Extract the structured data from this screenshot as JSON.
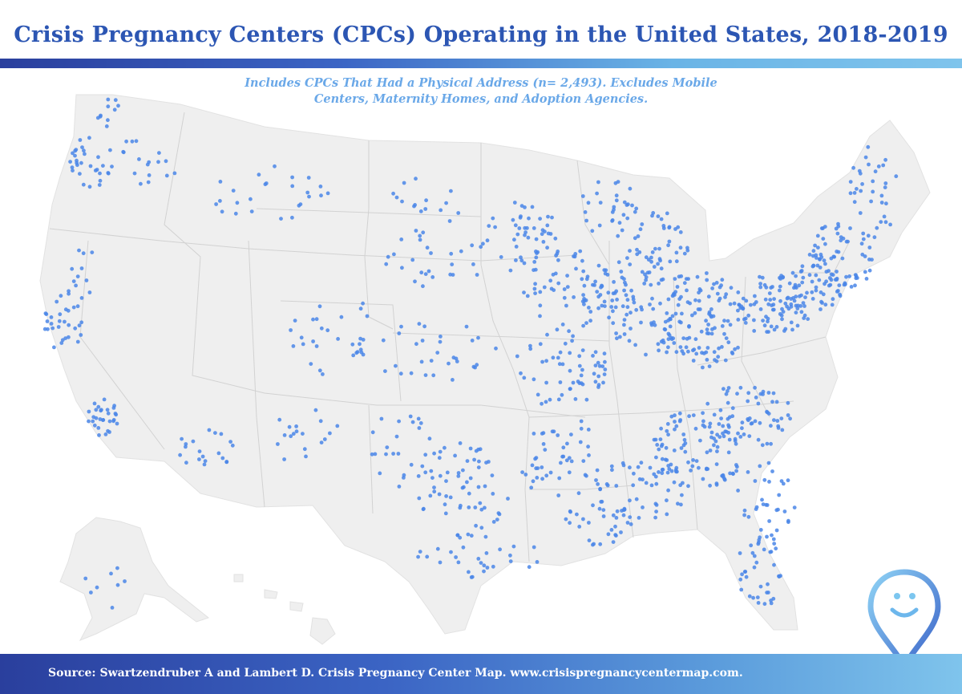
{
  "map": {
    "title": "Crisis Pregnancy Centers (CPCs) Operating in the United States, 2018-2019",
    "subtitle_line1": "Includes CPCs That Had a Physical Address (n= 2,493). Excludes Mobile",
    "subtitle_line2": "Centers, Maternity Homes, and Adoption Agencies.",
    "source": "Source: Swartzendruber A and Lambert D. Crisis Pregnancy Center Map. www.crisispregnancycentermap.com.",
    "point_count": 2493,
    "colors": {
      "title": "#2c56b3",
      "subtitle": "#6aa8e8",
      "dot": "#4a86e8",
      "land": "#efefef",
      "borders": "#d2d2d2"
    },
    "logo_icon": "map-pin-smiley-icon"
  }
}
